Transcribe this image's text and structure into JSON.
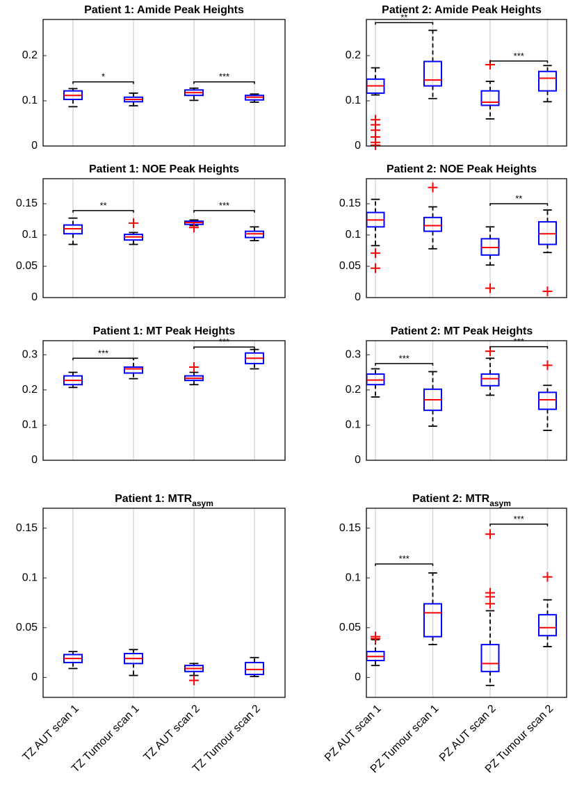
{
  "chart_data": [
    {
      "type": "box",
      "title": "Patient 1: Amide Peak Heights",
      "ylim": [
        0,
        0.28
      ],
      "yticks": [
        0,
        0.1,
        0.2
      ],
      "grid": "x",
      "box_color": "#0000ff",
      "median_color": "#ff0000",
      "outlier_color": "#ff0000",
      "boxes": [
        {
          "whisker_low": 0.087,
          "q1": 0.103,
          "median": 0.112,
          "q3": 0.122,
          "whisker_high": 0.127,
          "outliers": []
        },
        {
          "whisker_low": 0.089,
          "q1": 0.098,
          "median": 0.103,
          "q3": 0.108,
          "whisker_high": 0.117,
          "outliers": []
        },
        {
          "whisker_low": 0.101,
          "q1": 0.112,
          "median": 0.118,
          "q3": 0.124,
          "whisker_high": 0.128,
          "outliers": []
        },
        {
          "whisker_low": 0.097,
          "q1": 0.102,
          "median": 0.108,
          "q3": 0.112,
          "whisker_high": 0.115,
          "outliers": []
        }
      ],
      "significance": [
        {
          "label": "*",
          "from": 1,
          "to": 2,
          "y": 0.142
        },
        {
          "label": "***",
          "from": 3,
          "to": 4,
          "y": 0.142
        }
      ]
    },
    {
      "type": "box",
      "title": "Patient 2: Amide Peak Heights",
      "ylim": [
        0,
        0.28
      ],
      "yticks": [
        0,
        0.1,
        0.2
      ],
      "grid": "x",
      "box_color": "#0000ff",
      "median_color": "#ff0000",
      "outlier_color": "#ff0000",
      "boxes": [
        {
          "whisker_low": 0.113,
          "q1": 0.117,
          "median": 0.133,
          "q3": 0.148,
          "whisker_high": 0.173,
          "outliers": [
            0.058,
            0.047,
            0.035,
            0.02,
            0.008,
            0.002
          ]
        },
        {
          "whisker_low": 0.105,
          "q1": 0.133,
          "median": 0.146,
          "q3": 0.187,
          "whisker_high": 0.256,
          "outliers": []
        },
        {
          "whisker_low": 0.06,
          "q1": 0.09,
          "median": 0.097,
          "q3": 0.122,
          "whisker_high": 0.143,
          "outliers": [
            0.18
          ]
        },
        {
          "whisker_low": 0.098,
          "q1": 0.122,
          "median": 0.15,
          "q3": 0.165,
          "whisker_high": 0.178,
          "outliers": []
        }
      ],
      "significance": [
        {
          "label": "**",
          "from": 1,
          "to": 2,
          "y": 0.273
        },
        {
          "label": "***",
          "from": 3,
          "to": 4,
          "y": 0.188
        }
      ]
    },
    {
      "type": "box",
      "title": "Patient 1: NOE Peak Heights",
      "ylim": [
        0,
        0.19
      ],
      "yticks": [
        0,
        0.05,
        0.1,
        0.15
      ],
      "grid": "x",
      "box_color": "#0000ff",
      "median_color": "#ff0000",
      "outlier_color": "#ff0000",
      "boxes": [
        {
          "whisker_low": 0.085,
          "q1": 0.102,
          "median": 0.11,
          "q3": 0.116,
          "whisker_high": 0.127,
          "outliers": []
        },
        {
          "whisker_low": 0.085,
          "q1": 0.092,
          "median": 0.097,
          "q3": 0.101,
          "whisker_high": 0.104,
          "outliers": [
            0.119
          ]
        },
        {
          "whisker_low": 0.115,
          "q1": 0.117,
          "median": 0.12,
          "q3": 0.122,
          "whisker_high": 0.124,
          "outliers": [
            0.112
          ]
        },
        {
          "whisker_low": 0.091,
          "q1": 0.096,
          "median": 0.102,
          "q3": 0.106,
          "whisker_high": 0.113,
          "outliers": []
        }
      ],
      "significance": [
        {
          "label": "**",
          "from": 1,
          "to": 2,
          "y": 0.139
        },
        {
          "label": "***",
          "from": 3,
          "to": 4,
          "y": 0.139
        }
      ]
    },
    {
      "type": "box",
      "title": "Patient 2: NOE Peak Heights",
      "ylim": [
        0,
        0.19
      ],
      "yticks": [
        0,
        0.05,
        0.1,
        0.15
      ],
      "grid": "x",
      "box_color": "#0000ff",
      "median_color": "#ff0000",
      "outlier_color": "#ff0000",
      "boxes": [
        {
          "whisker_low": 0.083,
          "q1": 0.113,
          "median": 0.124,
          "q3": 0.136,
          "whisker_high": 0.157,
          "outliers": [
            0.071,
            0.047
          ]
        },
        {
          "whisker_low": 0.078,
          "q1": 0.106,
          "median": 0.115,
          "q3": 0.128,
          "whisker_high": 0.145,
          "outliers": [
            0.176
          ]
        },
        {
          "whisker_low": 0.052,
          "q1": 0.068,
          "median": 0.08,
          "q3": 0.094,
          "whisker_high": 0.113,
          "outliers": [
            0.015
          ]
        },
        {
          "whisker_low": 0.072,
          "q1": 0.085,
          "median": 0.102,
          "q3": 0.121,
          "whisker_high": 0.14,
          "outliers": [
            0.01
          ]
        }
      ],
      "significance": [
        {
          "label": "**",
          "from": 3,
          "to": 4,
          "y": 0.15
        }
      ]
    },
    {
      "type": "box",
      "title": "Patient 1: MT Peak Heights",
      "ylim": [
        0,
        0.34
      ],
      "yticks": [
        0,
        0.1,
        0.2,
        0.3
      ],
      "grid": "x",
      "box_color": "#0000ff",
      "median_color": "#ff0000",
      "outlier_color": "#ff0000",
      "boxes": [
        {
          "whisker_low": 0.207,
          "q1": 0.215,
          "median": 0.227,
          "q3": 0.24,
          "whisker_high": 0.25,
          "outliers": []
        },
        {
          "whisker_low": 0.232,
          "q1": 0.248,
          "median": 0.26,
          "q3": 0.265,
          "whisker_high": 0.29,
          "outliers": []
        },
        {
          "whisker_low": 0.215,
          "q1": 0.227,
          "median": 0.233,
          "q3": 0.24,
          "whisker_high": 0.25,
          "outliers": [
            0.265
          ]
        },
        {
          "whisker_low": 0.26,
          "q1": 0.275,
          "median": 0.29,
          "q3": 0.305,
          "whisker_high": 0.315,
          "outliers": []
        }
      ],
      "significance": [
        {
          "label": "***",
          "from": 1,
          "to": 2,
          "y": 0.29
        },
        {
          "label": "***",
          "from": 3,
          "to": 4,
          "y": 0.322
        }
      ]
    },
    {
      "type": "box",
      "title": "Patient 2: MT Peak Heights",
      "ylim": [
        0,
        0.34
      ],
      "yticks": [
        0,
        0.1,
        0.2,
        0.3
      ],
      "grid": "x",
      "box_color": "#0000ff",
      "median_color": "#ff0000",
      "outlier_color": "#ff0000",
      "boxes": [
        {
          "whisker_low": 0.18,
          "q1": 0.215,
          "median": 0.228,
          "q3": 0.245,
          "whisker_high": 0.26,
          "outliers": []
        },
        {
          "whisker_low": 0.097,
          "q1": 0.142,
          "median": 0.172,
          "q3": 0.202,
          "whisker_high": 0.252,
          "outliers": []
        },
        {
          "whisker_low": 0.185,
          "q1": 0.212,
          "median": 0.232,
          "q3": 0.245,
          "whisker_high": 0.29,
          "outliers": [
            0.31
          ]
        },
        {
          "whisker_low": 0.085,
          "q1": 0.145,
          "median": 0.172,
          "q3": 0.193,
          "whisker_high": 0.213,
          "outliers": [
            0.27
          ]
        }
      ],
      "significance": [
        {
          "label": "***",
          "from": 1,
          "to": 2,
          "y": 0.275
        },
        {
          "label": "***",
          "from": 3,
          "to": 4,
          "y": 0.323
        }
      ]
    },
    {
      "type": "box",
      "title": "Patient 1: MTR",
      "title_subscript": "asym",
      "ylim": [
        -0.02,
        0.17
      ],
      "yticks": [
        0,
        0.05,
        0.1,
        0.15
      ],
      "grid": "x",
      "box_color": "#0000ff",
      "median_color": "#ff0000",
      "outlier_color": "#ff0000",
      "categories": [
        "TZ AUT scan 1",
        "TZ Tumour scan 1",
        "TZ AUT scan 2",
        "TZ Tumour scan 2"
      ],
      "boxes": [
        {
          "whisker_low": 0.009,
          "q1": 0.015,
          "median": 0.019,
          "q3": 0.023,
          "whisker_high": 0.026,
          "outliers": []
        },
        {
          "whisker_low": 0.002,
          "q1": 0.014,
          "median": 0.019,
          "q3": 0.024,
          "whisker_high": 0.028,
          "outliers": []
        },
        {
          "whisker_low": 0.002,
          "q1": 0.006,
          "median": 0.009,
          "q3": 0.012,
          "whisker_high": 0.014,
          "outliers": [
            -0.003
          ]
        },
        {
          "whisker_low": 0.001,
          "q1": 0.003,
          "median": 0.008,
          "q3": 0.015,
          "whisker_high": 0.02,
          "outliers": []
        }
      ],
      "significance": []
    },
    {
      "type": "box",
      "title": "Patient 2: MTR",
      "title_subscript": "asym",
      "ylim": [
        -0.02,
        0.17
      ],
      "yticks": [
        0,
        0.05,
        0.1,
        0.15
      ],
      "grid": "x",
      "box_color": "#0000ff",
      "median_color": "#ff0000",
      "outlier_color": "#ff0000",
      "categories": [
        "PZ AUT scan 1",
        "PZ Tumour scan 1",
        "PZ AUT scan 2",
        "PZ Tumour scan 2"
      ],
      "boxes": [
        {
          "whisker_low": 0.012,
          "q1": 0.017,
          "median": 0.021,
          "q3": 0.026,
          "whisker_high": 0.038,
          "outliers": [
            0.041,
            0.039
          ]
        },
        {
          "whisker_low": 0.033,
          "q1": 0.041,
          "median": 0.065,
          "q3": 0.074,
          "whisker_high": 0.105,
          "outliers": []
        },
        {
          "whisker_low": -0.008,
          "q1": 0.006,
          "median": 0.014,
          "q3": 0.033,
          "whisker_high": 0.067,
          "outliers": [
            0.144,
            0.085,
            0.081,
            0.074
          ]
        },
        {
          "whisker_low": 0.031,
          "q1": 0.042,
          "median": 0.05,
          "q3": 0.063,
          "whisker_high": 0.078,
          "outliers": [
            0.101
          ]
        }
      ],
      "significance": [
        {
          "label": "***",
          "from": 1,
          "to": 2,
          "y": 0.114
        },
        {
          "label": "***",
          "from": 3,
          "to": 4,
          "y": 0.154
        }
      ]
    }
  ]
}
